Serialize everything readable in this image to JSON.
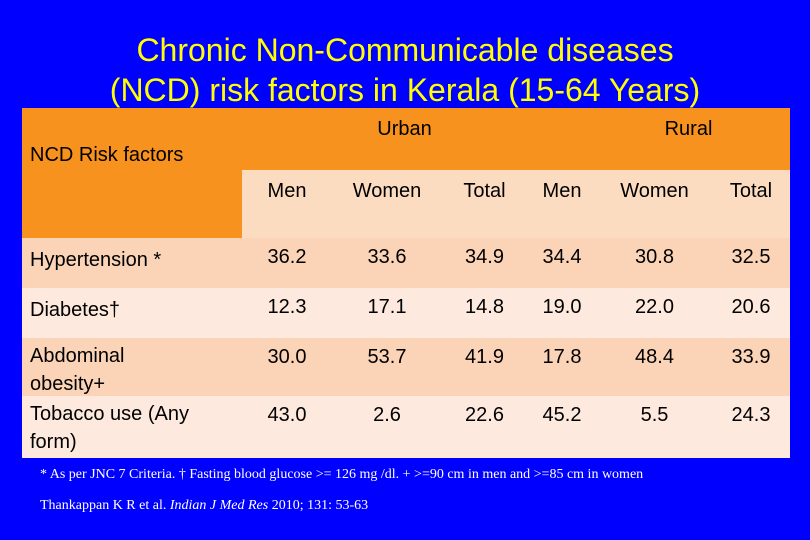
{
  "title": {
    "line1": "Chronic Non-Communicable diseases",
    "line2": "(NCD) risk factors in Kerala (15-64 Years)"
  },
  "table": {
    "corner_label": "NCD Risk factors",
    "groups": [
      "Urban",
      "Rural"
    ],
    "subheaders": [
      "Men",
      "Women",
      "Total",
      "Men",
      "Women",
      "Total"
    ],
    "rows": [
      {
        "label": "Hypertension *",
        "values": [
          "36.2",
          "33.6",
          "34.9",
          "34.4",
          "30.8",
          "32.5"
        ]
      },
      {
        "label": "Diabetes†",
        "values": [
          "12.3",
          "17.1",
          "14.8",
          "19.0",
          "22.0",
          "20.6"
        ]
      },
      {
        "label": "Abdominal obesity+",
        "values": [
          "30.0",
          "53.7",
          "41.9",
          "17.8",
          "48.4",
          "33.9"
        ]
      },
      {
        "label": "Tobacco use (Any form)",
        "values": [
          "43.0",
          "2.6",
          "22.6",
          "45.2",
          "5.5",
          "24.3"
        ]
      }
    ]
  },
  "footnote": "* As per JNC 7 Criteria. † Fasting blood glucose >= 126 mg /dl. + >=90 cm in men and >=85 cm in women",
  "citation": {
    "authors": "Thankappan K R et al.",
    "journal": "Indian J Med Res",
    "details": "2010; 131: 53-63"
  },
  "colors": {
    "background": "#0000ff",
    "title": "#ffff00",
    "header": "#f7921e",
    "subheader": "#fcdcc0",
    "row_dark": "#fbd4b8",
    "row_light": "#fde9dd"
  }
}
